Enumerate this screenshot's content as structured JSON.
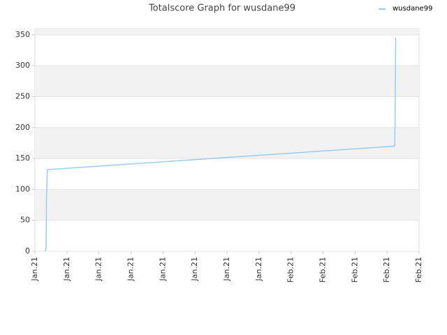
{
  "chart_data": {
    "type": "line",
    "title": "Totalscore Graph for wusdane99",
    "xlim": [
      0,
      12
    ],
    "xticks": [
      {
        "value": 0,
        "label": "Jan.21"
      },
      {
        "value": 1,
        "label": "Jan.21"
      },
      {
        "value": 2,
        "label": "Jan.21"
      },
      {
        "value": 3,
        "label": "Jan.21"
      },
      {
        "value": 4,
        "label": "Jan.21"
      },
      {
        "value": 5,
        "label": "Jan.21"
      },
      {
        "value": 6,
        "label": "Jan.21"
      },
      {
        "value": 7,
        "label": "Jan.21"
      },
      {
        "value": 8,
        "label": "Feb.21"
      },
      {
        "value": 9,
        "label": "Feb.21"
      },
      {
        "value": 10,
        "label": "Feb.21"
      },
      {
        "value": 11,
        "label": "Feb.21"
      },
      {
        "value": 12,
        "label": "Feb.21"
      }
    ],
    "ylim": [
      0,
      360
    ],
    "yticks": [
      0,
      50,
      100,
      150,
      200,
      250,
      300,
      350
    ],
    "grid": true,
    "legend": "top-right",
    "series": [
      {
        "name": "wusdane99",
        "color": "#99ccee",
        "x": [
          0.33,
          0.35,
          0.36,
          0.39,
          11.24,
          11.25,
          11.26,
          11.27
        ],
        "values": [
          0,
          5,
          85,
          132,
          170,
          207,
          272,
          345
        ]
      }
    ]
  }
}
